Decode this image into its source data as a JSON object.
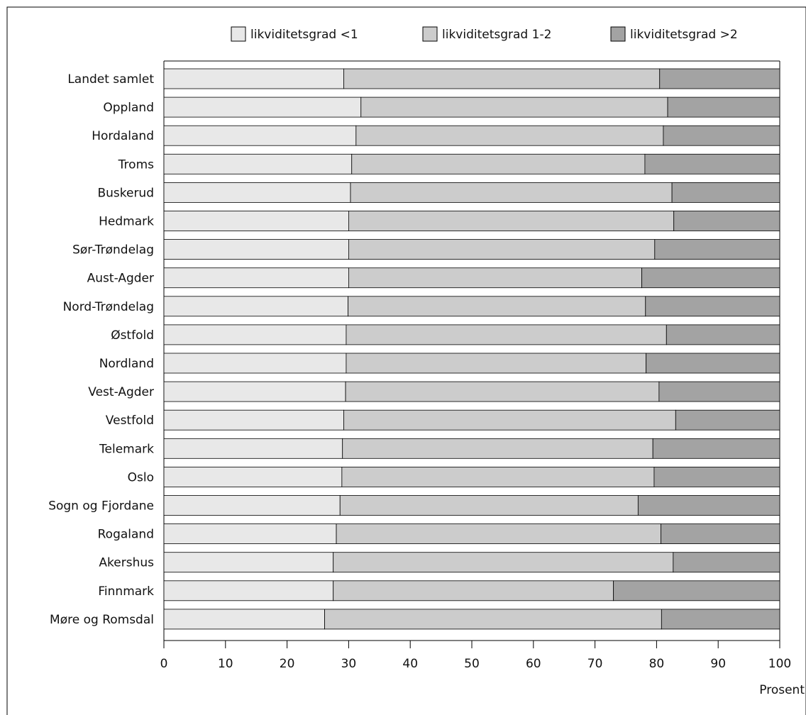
{
  "chart_data": {
    "type": "bar",
    "orientation": "horizontal",
    "stacked": true,
    "title": "",
    "xlabel": "Prosent",
    "ylabel": "",
    "xlim": [
      0,
      100
    ],
    "xticks": [
      0,
      10,
      20,
      30,
      40,
      50,
      60,
      70,
      80,
      90,
      100
    ],
    "grid": false,
    "legend_position": "top",
    "categories": [
      "Landet samlet",
      "Oppland",
      "Hordaland",
      "Troms",
      "Buskerud",
      "Hedmark",
      "Sør-Trøndelag",
      "Aust-Agder",
      "Nord-Trøndelag",
      "Østfold",
      "Nordland",
      "Vest-Agder",
      "Vestfold",
      "Telemark",
      "Oslo",
      "Sogn og Fjordane",
      "Rogaland",
      "Akershus",
      "Finnmark",
      "Møre og Romsdal"
    ],
    "series": [
      {
        "name": "likviditetsgrad <1",
        "color": "#e8e8e8",
        "values": [
          29.2,
          32.0,
          31.2,
          30.5,
          30.3,
          30.0,
          30.0,
          30.0,
          29.9,
          29.6,
          29.6,
          29.5,
          29.2,
          29.0,
          28.9,
          28.6,
          28.0,
          27.5,
          27.5,
          26.1
        ]
      },
      {
        "name": "likviditetsgrad 1-2",
        "color": "#cccccc",
        "values": [
          51.3,
          49.8,
          49.9,
          47.6,
          52.2,
          52.8,
          49.7,
          47.6,
          48.3,
          52.0,
          48.7,
          50.9,
          53.9,
          50.4,
          50.7,
          48.4,
          52.7,
          55.2,
          45.5,
          54.7
        ]
      },
      {
        "name": "likviditetsgrad >2",
        "color": "#a3a3a3",
        "values": [
          19.5,
          18.2,
          18.9,
          21.9,
          17.5,
          17.2,
          20.3,
          22.4,
          21.8,
          18.4,
          21.7,
          19.6,
          16.9,
          20.6,
          20.4,
          23.0,
          19.3,
          17.3,
          27.0,
          19.2
        ]
      }
    ]
  }
}
